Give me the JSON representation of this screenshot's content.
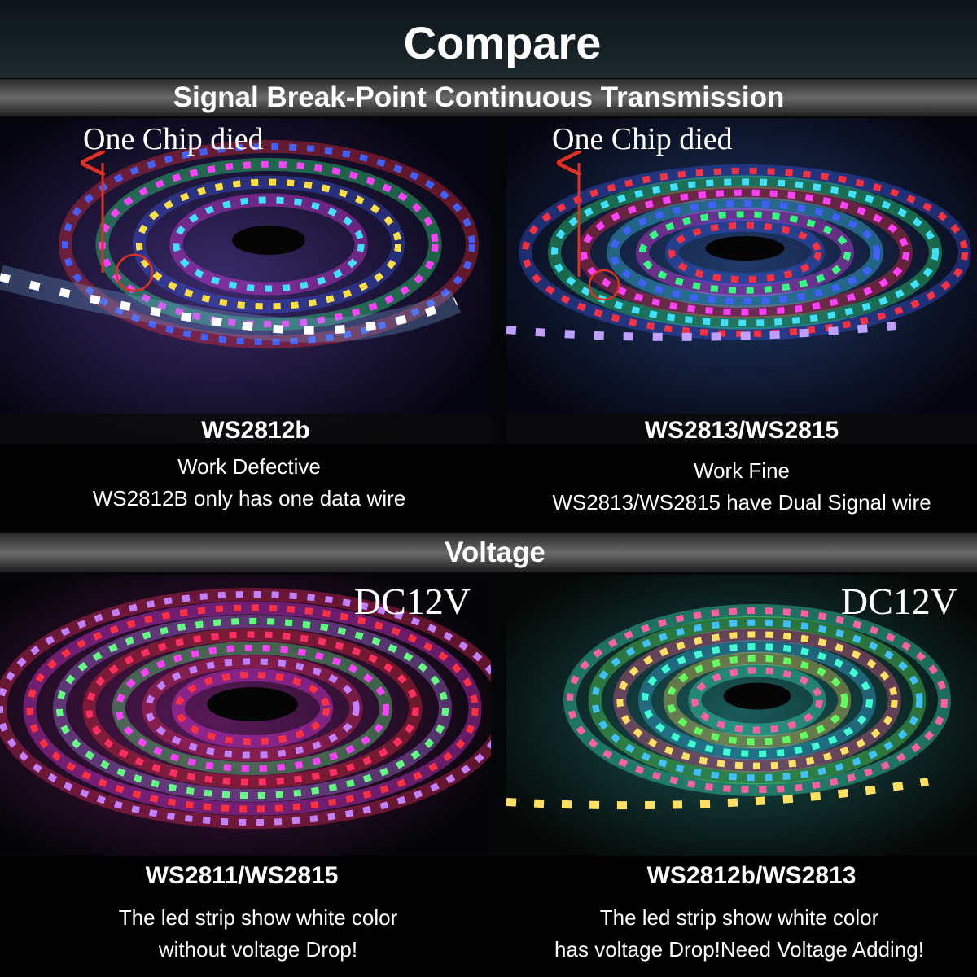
{
  "title": "Compare",
  "sections": [
    {
      "heading": "Signal Break-Point Continuous Transmission",
      "panels": [
        {
          "annotation": "One Chip died",
          "model": "WS2812b",
          "lines": [
            "Work Defective",
            "WS2812B only has one data wire"
          ]
        },
        {
          "annotation": "One Chip died",
          "model": "WS2813/WS2815",
          "lines": [
            "Work Fine",
            "WS2813/WS2815  have Dual Signal wire"
          ]
        }
      ]
    },
    {
      "heading": "Voltage",
      "panels": [
        {
          "annotation": "DC12V",
          "model": "WS2811/WS2815",
          "lines": [
            "The led strip show white color",
            "without voltage Drop!"
          ]
        },
        {
          "annotation": "DC12V",
          "model": "WS2812b/WS2813",
          "lines": [
            "The led strip show white color",
            "has voltage Drop!Need Voltage Adding!"
          ]
        }
      ]
    }
  ]
}
